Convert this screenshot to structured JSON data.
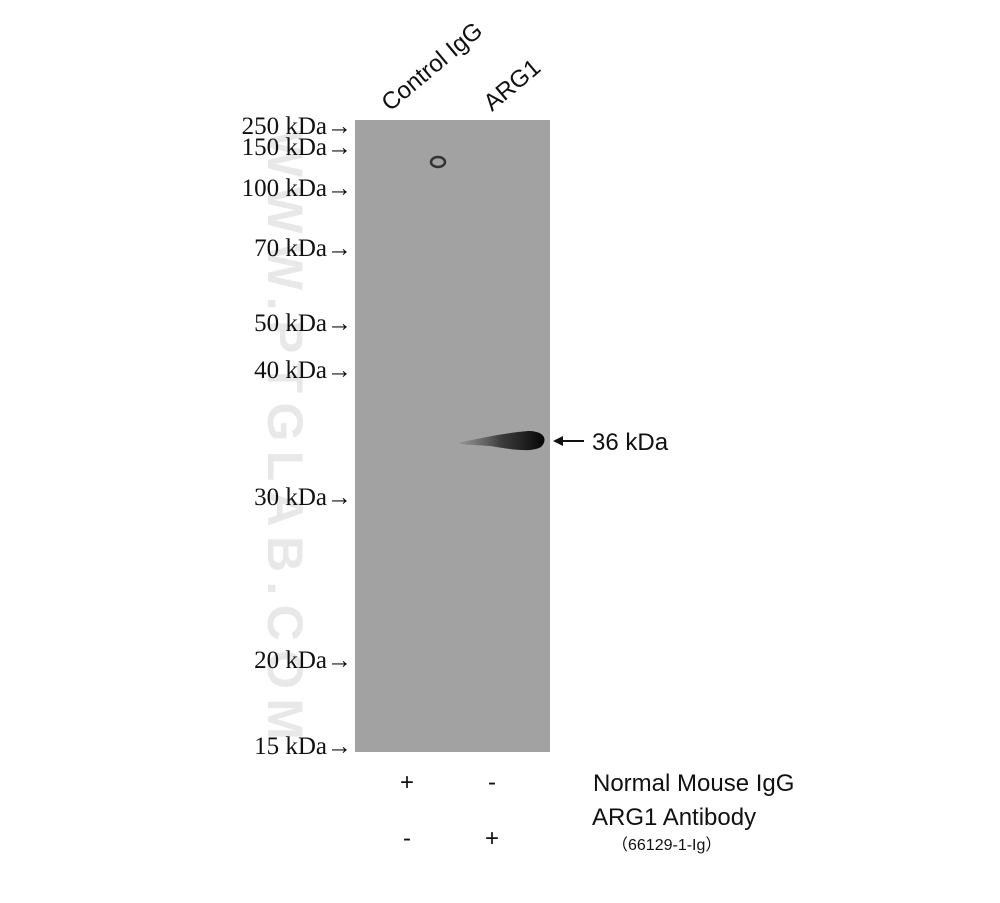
{
  "lanes": [
    "Control IgG",
    "ARG1"
  ],
  "markers": [
    "250 kDa→",
    "150 kDa→",
    "100 kDa→",
    "70 kDa→",
    "50 kDa→",
    "40 kDa→",
    "30 kDa→",
    "20 kDa→",
    "15 kDa→"
  ],
  "band_label": "36 kDa",
  "watermark": "WWW.PTGLAB.COM",
  "conditions": [
    {
      "label": "Normal Mouse IgG",
      "lanes": [
        "+",
        "-"
      ]
    },
    {
      "label": "ARG1 Antibody",
      "sublabel": "（66129-1-Ig）",
      "lanes": [
        "-",
        "+"
      ]
    }
  ]
}
